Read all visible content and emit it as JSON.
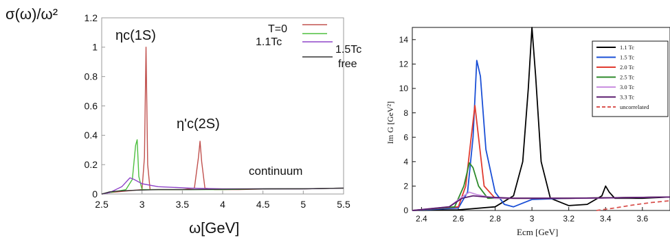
{
  "chart_data": [
    {
      "type": "line",
      "ylabel": "σ(ω)/ω²",
      "xlabel": "ω[GeV]",
      "xlim": [
        2.5,
        5.5
      ],
      "ylim": [
        0,
        1.2
      ],
      "xticks": [
        "2.5",
        "3",
        "3.5",
        "4",
        "4.5",
        "5",
        "5.5"
      ],
      "yticks": [
        "0",
        "0.2",
        "0.4",
        "0.6",
        "0.8",
        "1",
        "1.2"
      ],
      "legend": "top-right",
      "annotations": {
        "peak1": "ηc(1S)",
        "peak2": "η'c(2S)",
        "continuum": "continuum"
      },
      "series": [
        {
          "name": "T=0",
          "color": "#c0504d",
          "x": [
            2.5,
            2.6,
            2.8,
            3.0,
            3.03,
            3.05,
            3.07,
            3.1,
            3.2,
            3.5,
            3.65,
            3.7,
            3.72,
            3.74,
            3.78,
            3.9,
            4.2,
            4.6,
            5.0,
            5.5
          ],
          "values": [
            0,
            0.01,
            0.02,
            0.03,
            0.25,
            1.0,
            0.2,
            0.03,
            0.03,
            0.03,
            0.04,
            0.25,
            0.36,
            0.22,
            0.04,
            0.03,
            0.03,
            0.035,
            0.035,
            0.04
          ]
        },
        {
          "name": "1.1Tc",
          "color": "#4dbf3f",
          "x": [
            2.5,
            2.6,
            2.8,
            2.88,
            2.92,
            2.94,
            2.96,
            3.0,
            3.2,
            3.6,
            4.0,
            4.5,
            5.0,
            5.5
          ],
          "values": [
            0,
            0.01,
            0.03,
            0.1,
            0.33,
            0.37,
            0.12,
            0.03,
            0.03,
            0.03,
            0.03,
            0.035,
            0.035,
            0.04
          ]
        },
        {
          "name": "1.5Tc",
          "color": "#8e44c8",
          "x": [
            2.5,
            2.6,
            2.75,
            2.85,
            2.9,
            3.0,
            3.2,
            3.6,
            4.0,
            4.5,
            5.0,
            5.5
          ],
          "values": [
            0,
            0.01,
            0.05,
            0.11,
            0.1,
            0.07,
            0.05,
            0.04,
            0.035,
            0.035,
            0.035,
            0.04
          ]
        },
        {
          "name": "free",
          "color": "#333333",
          "x": [
            2.5,
            2.6,
            2.7,
            2.9,
            3.2,
            3.6,
            4.0,
            4.5,
            5.0,
            5.5
          ],
          "values": [
            0,
            0.015,
            0.02,
            0.025,
            0.03,
            0.03,
            0.032,
            0.035,
            0.036,
            0.04
          ]
        }
      ]
    },
    {
      "type": "line",
      "ylabel": "Im G [GeV²]",
      "xlabel": "Ecm [GeV]",
      "xlim": [
        2.35,
        3.75
      ],
      "ylim": [
        0,
        15
      ],
      "xticks": [
        "2.4",
        "2.6",
        "2.8",
        "3",
        "3.2",
        "3.4",
        "3.6"
      ],
      "yticks": [
        "0",
        "2",
        "4",
        "6",
        "8",
        "10",
        "12",
        "14"
      ],
      "legend": "top-right",
      "series": [
        {
          "name": "1.1 Tc",
          "color": "#000000",
          "x": [
            2.35,
            2.6,
            2.8,
            2.9,
            2.95,
            2.98,
            3.0,
            3.02,
            3.05,
            3.1,
            3.2,
            3.3,
            3.38,
            3.4,
            3.42,
            3.45,
            3.6,
            3.75
          ],
          "values": [
            0,
            0.05,
            0.3,
            1.2,
            4,
            10,
            15,
            11,
            4,
            1,
            0.4,
            0.5,
            1.2,
            2,
            1.5,
            1,
            1,
            1.1
          ]
        },
        {
          "name": "1.5 Tc",
          "color": "#1a4fd6",
          "x": [
            2.35,
            2.6,
            2.65,
            2.68,
            2.7,
            2.72,
            2.75,
            2.8,
            2.85,
            2.9,
            2.95,
            3.0,
            3.2,
            3.5,
            3.75
          ],
          "values": [
            0,
            0.2,
            1.5,
            6,
            12.3,
            11,
            5,
            1.5,
            0.5,
            0.3,
            0.6,
            0.9,
            1,
            1.05,
            1.1
          ]
        },
        {
          "name": "2.0 Tc",
          "color": "#e03a2f",
          "x": [
            2.35,
            2.6,
            2.64,
            2.67,
            2.69,
            2.71,
            2.74,
            2.8,
            3.0,
            3.2,
            3.5,
            3.75
          ],
          "values": [
            0,
            0.3,
            2,
            6,
            8.6,
            6,
            2,
            1,
            1,
            1,
            1.05,
            1.1
          ]
        },
        {
          "name": "2.5 Tc",
          "color": "#2d8a2a",
          "x": [
            2.35,
            2.58,
            2.63,
            2.66,
            2.68,
            2.71,
            2.76,
            2.9,
            3.2,
            3.5,
            3.75
          ],
          "values": [
            0,
            0.3,
            2,
            3.9,
            3.5,
            2,
            1,
            1,
            1,
            1.05,
            1.1
          ]
        },
        {
          "name": "3.0 Tc",
          "color": "#c98fe0",
          "x": [
            2.35,
            2.55,
            2.62,
            2.66,
            2.7,
            2.8,
            3.0,
            3.3,
            3.75
          ],
          "values": [
            0,
            0.3,
            1.1,
            1.5,
            1.3,
            1,
            1,
            1,
            1.1
          ]
        },
        {
          "name": "3.3 Tc",
          "color": "#5a1a6e",
          "x": [
            2.35,
            2.55,
            2.62,
            2.68,
            2.75,
            2.9,
            3.2,
            3.5,
            3.75
          ],
          "values": [
            0,
            0.3,
            1.0,
            1.2,
            1.1,
            1,
            1,
            1.05,
            1.1
          ]
        },
        {
          "name": "uncorrelated",
          "color": "#d9534f",
          "dashed": true,
          "x": [
            3.35,
            3.45,
            3.55,
            3.65,
            3.75
          ],
          "values": [
            0,
            0.2,
            0.45,
            0.65,
            0.8
          ]
        }
      ]
    }
  ]
}
